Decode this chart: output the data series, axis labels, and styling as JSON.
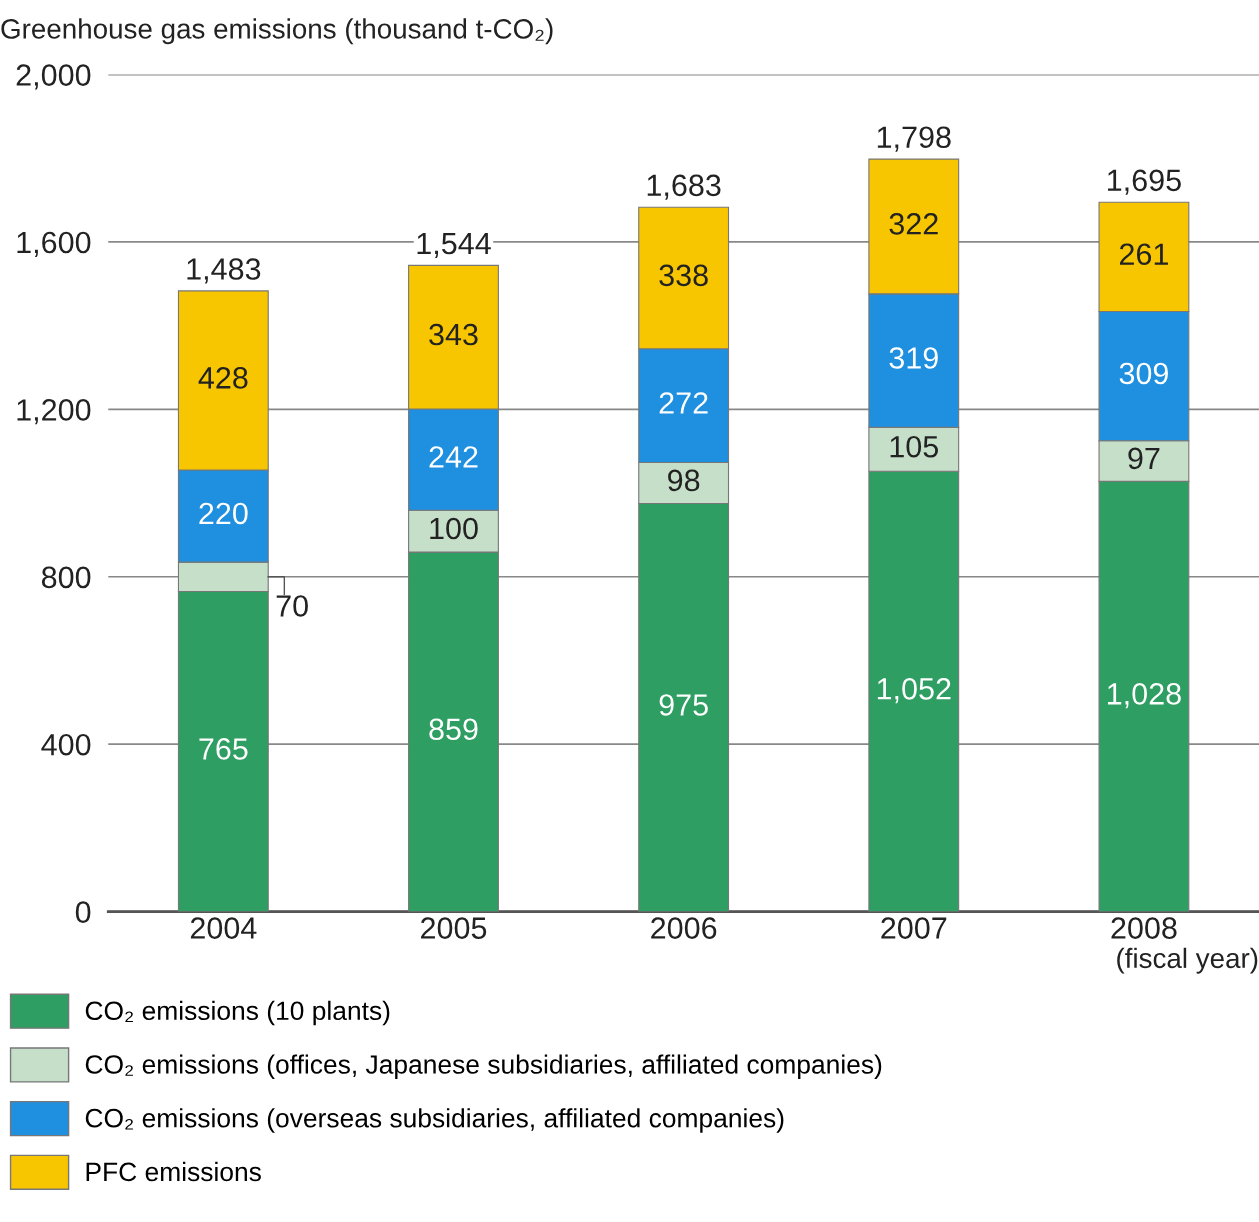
{
  "chart_data": {
    "type": "bar",
    "stacked": true,
    "ylabel": "Greenhouse gas emissions (thousand t-CO₂)",
    "xlabel": "(fiscal year)",
    "categories": [
      "2004",
      "2005",
      "2006",
      "2007",
      "2008"
    ],
    "series": [
      {
        "name": "CO₂ emissions (10 plants)",
        "color": "#2e9e62",
        "values": [
          765,
          859,
          975,
          1052,
          1028
        ],
        "value_labels": [
          "765",
          "859",
          "975",
          "1,052",
          "1,028"
        ]
      },
      {
        "name": "CO₂ emissions (offices, Japanese subsidiaries, affiliated companies)",
        "color": "#c6dfc9",
        "values": [
          70,
          100,
          98,
          105,
          97
        ],
        "value_labels": [
          "70",
          "100",
          "98",
          "105",
          "97"
        ]
      },
      {
        "name": "CO₂ emissions (overseas subsidiaries, affiliated companies)",
        "color": "#1f8fe0",
        "values": [
          220,
          242,
          272,
          319,
          309
        ],
        "value_labels": [
          "220",
          "242",
          "272",
          "319",
          "309"
        ]
      },
      {
        "name": "PFC emissions",
        "color": "#f7c600",
        "values": [
          428,
          343,
          338,
          322,
          261
        ],
        "value_labels": [
          "428",
          "343",
          "338",
          "322",
          "261"
        ]
      }
    ],
    "totals": [
      "1,483",
      "1,544",
      "1,683",
      "1,798",
      "1,695"
    ],
    "ylim": [
      0,
      2000
    ],
    "yticks": [
      {
        "value": 0,
        "label": "0"
      },
      {
        "value": 400,
        "label": "400"
      },
      {
        "value": 800,
        "label": "800"
      },
      {
        "value": 1200,
        "label": "1,200"
      },
      {
        "value": 1600,
        "label": "1,600"
      },
      {
        "value": 2000,
        "label": "2,000"
      }
    ],
    "grid": "y",
    "legend": "bottom"
  }
}
